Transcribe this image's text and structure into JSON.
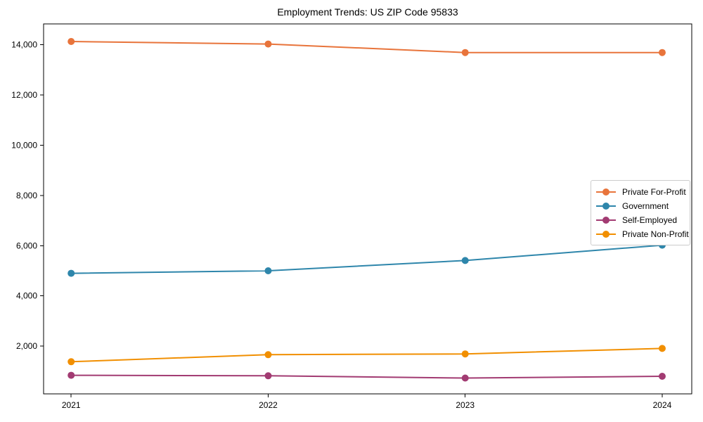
{
  "chart_data": {
    "type": "line",
    "title": "Employment Trends: US ZIP Code 95833",
    "xlabel": "",
    "ylabel": "",
    "categories": [
      2021,
      2022,
      2023,
      2024
    ],
    "x_tick_labels": [
      "2021",
      "2022",
      "2023",
      "2024"
    ],
    "y_ticks": [
      2000,
      4000,
      6000,
      8000,
      10000,
      12000,
      14000
    ],
    "y_tick_labels": [
      "2,000",
      "4,000",
      "6,000",
      "8,000",
      "10,000",
      "12,000",
      "14,000"
    ],
    "xlim": [
      2020.86,
      2024.15
    ],
    "ylim": [
      100,
      14830
    ],
    "grid": false,
    "marker": "circle",
    "marker_size": 10,
    "line_width": 2,
    "axis_color": "#000000",
    "text_color": "#000000",
    "background_color": "#ffffff",
    "legend": {
      "position": "center-right",
      "border_color": "#cccccc",
      "background": "#ffffff"
    },
    "series": [
      {
        "name": "Private For-Profit",
        "color": "#E8743B",
        "values": [
          14130,
          14030,
          13690,
          13690
        ]
      },
      {
        "name": "Government",
        "color": "#2E86AB",
        "values": [
          4900,
          5000,
          5410,
          6020
        ]
      },
      {
        "name": "Self-Employed",
        "color": "#A23B72",
        "values": [
          840,
          820,
          730,
          800
        ]
      },
      {
        "name": "Private Non-Profit",
        "color": "#F18F01",
        "values": [
          1380,
          1660,
          1690,
          1910
        ]
      }
    ]
  }
}
